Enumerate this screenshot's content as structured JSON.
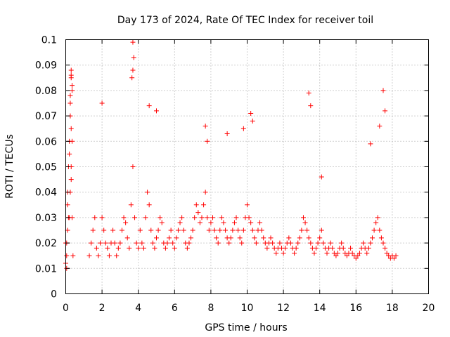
{
  "chart_data": {
    "type": "scatter",
    "title": "Day 173 of 2024, Rate Of TEC Index for receiver toil",
    "xlabel": "GPS time / hours",
    "ylabel": "ROTI / TECUs",
    "xlim": [
      0,
      20
    ],
    "ylim": [
      0,
      0.1
    ],
    "xticks": [
      "0",
      "2",
      "4",
      "6",
      "8",
      "10",
      "12",
      "14",
      "16",
      "18",
      "20"
    ],
    "yticks": [
      "0",
      "0.01",
      "0.02",
      "0.03",
      "0.04",
      "0.05",
      "0.06",
      "0.07",
      "0.08",
      "0.09",
      "0.1"
    ],
    "grid": true,
    "marker": "+",
    "color": "#ff0000",
    "series": [
      {
        "name": "ROTI",
        "description": "dense scatter of ROTI samples; dominant band 0.005-0.03 TECU/s, data gap 0.4-1.2 h, no data after ~18.2 h",
        "x": [
          0.0,
          0.05,
          0.1,
          0.15,
          0.2,
          0.25,
          0.3,
          0.35,
          0.4,
          0.05,
          0.1,
          0.2,
          0.3,
          0.35,
          0.3,
          0.25,
          0.2,
          0.1,
          0.0,
          0.05,
          0.15,
          0.25,
          0.3,
          0.35,
          1.3,
          1.4,
          1.5,
          1.6,
          1.7,
          1.8,
          1.9,
          2.0,
          2.1,
          2.2,
          2.3,
          2.4,
          2.5,
          2.6,
          2.7,
          2.8,
          2.9,
          3.0,
          3.1,
          3.2,
          3.3,
          3.4,
          3.5,
          3.6,
          3.7,
          3.8,
          3.9,
          4.0,
          4.1,
          4.2,
          4.3,
          4.4,
          4.5,
          4.6,
          4.7,
          4.8,
          4.9,
          5.0,
          5.1,
          5.2,
          5.3,
          5.4,
          5.5,
          5.6,
          5.7,
          5.8,
          5.9,
          6.0,
          6.1,
          6.2,
          6.3,
          6.4,
          6.5,
          6.6,
          6.7,
          6.8,
          6.9,
          7.0,
          7.1,
          7.2,
          7.3,
          7.4,
          7.5,
          7.6,
          7.7,
          7.8,
          7.9,
          8.0,
          8.1,
          8.2,
          8.3,
          8.4,
          8.5,
          8.6,
          8.7,
          8.8,
          8.9,
          9.0,
          9.1,
          9.2,
          9.3,
          9.4,
          9.5,
          9.6,
          9.7,
          9.8,
          9.9,
          10.0,
          10.1,
          10.2,
          10.3,
          10.4,
          10.5,
          10.6,
          10.7,
          10.8,
          10.9,
          11.0,
          11.1,
          11.2,
          11.3,
          11.4,
          11.5,
          11.6,
          11.7,
          11.8,
          11.9,
          12.0,
          12.1,
          12.2,
          12.3,
          12.4,
          12.5,
          12.6,
          12.7,
          12.8,
          12.9,
          13.0,
          13.1,
          13.2,
          13.3,
          13.4,
          13.5,
          13.6,
          13.7,
          13.8,
          13.9,
          14.0,
          14.1,
          14.2,
          14.3,
          14.4,
          14.5,
          14.6,
          14.7,
          14.8,
          14.9,
          15.0,
          15.1,
          15.2,
          15.3,
          15.4,
          15.5,
          15.6,
          15.7,
          15.8,
          15.9,
          16.0,
          16.1,
          16.2,
          16.3,
          16.4,
          16.5,
          16.6,
          16.7,
          16.8,
          16.9,
          17.0,
          17.1,
          17.2,
          17.3,
          17.4,
          17.5,
          17.6,
          17.7,
          17.8,
          17.9,
          18.0,
          18.1,
          18.2,
          0.3,
          0.35,
          0.3,
          0.25,
          3.7,
          3.75,
          3.7,
          3.65,
          4.6,
          5.0,
          7.7,
          7.8,
          10.2,
          10.3,
          13.4,
          13.5,
          14.1,
          17.5,
          17.6,
          17.3,
          16.8,
          9.8,
          8.9,
          2.0
        ],
        "y": [
          0.012,
          0.02,
          0.035,
          0.05,
          0.06,
          0.07,
          0.045,
          0.03,
          0.015,
          0.01,
          0.025,
          0.055,
          0.065,
          0.08,
          0.085,
          0.075,
          0.03,
          0.04,
          0.02,
          0.015,
          0.03,
          0.04,
          0.05,
          0.06,
          0.015,
          0.02,
          0.025,
          0.03,
          0.018,
          0.015,
          0.02,
          0.03,
          0.025,
          0.02,
          0.018,
          0.015,
          0.02,
          0.025,
          0.02,
          0.015,
          0.018,
          0.02,
          0.025,
          0.03,
          0.028,
          0.022,
          0.018,
          0.035,
          0.05,
          0.03,
          0.02,
          0.018,
          0.025,
          0.02,
          0.018,
          0.03,
          0.04,
          0.035,
          0.025,
          0.02,
          0.018,
          0.022,
          0.025,
          0.03,
          0.028,
          0.02,
          0.018,
          0.02,
          0.022,
          0.025,
          0.02,
          0.018,
          0.022,
          0.025,
          0.028,
          0.03,
          0.025,
          0.02,
          0.018,
          0.02,
          0.022,
          0.025,
          0.03,
          0.035,
          0.032,
          0.028,
          0.03,
          0.035,
          0.04,
          0.03,
          0.025,
          0.028,
          0.03,
          0.025,
          0.022,
          0.02,
          0.025,
          0.03,
          0.028,
          0.025,
          0.022,
          0.02,
          0.022,
          0.025,
          0.028,
          0.03,
          0.025,
          0.022,
          0.02,
          0.025,
          0.03,
          0.035,
          0.03,
          0.028,
          0.025,
          0.022,
          0.02,
          0.025,
          0.028,
          0.025,
          0.022,
          0.02,
          0.018,
          0.02,
          0.022,
          0.02,
          0.018,
          0.016,
          0.018,
          0.02,
          0.018,
          0.016,
          0.018,
          0.02,
          0.022,
          0.02,
          0.018,
          0.016,
          0.018,
          0.02,
          0.022,
          0.025,
          0.03,
          0.028,
          0.025,
          0.022,
          0.02,
          0.018,
          0.016,
          0.018,
          0.02,
          0.022,
          0.025,
          0.02,
          0.018,
          0.016,
          0.018,
          0.02,
          0.018,
          0.016,
          0.015,
          0.016,
          0.018,
          0.02,
          0.018,
          0.016,
          0.015,
          0.016,
          0.018,
          0.016,
          0.015,
          0.014,
          0.015,
          0.016,
          0.018,
          0.02,
          0.018,
          0.016,
          0.018,
          0.02,
          0.022,
          0.025,
          0.028,
          0.03,
          0.025,
          0.022,
          0.02,
          0.018,
          0.016,
          0.015,
          0.014,
          0.015,
          0.014,
          0.015,
          0.088,
          0.082,
          0.086,
          0.078,
          0.099,
          0.093,
          0.088,
          0.085,
          0.074,
          0.072,
          0.066,
          0.06,
          0.071,
          0.068,
          0.079,
          0.074,
          0.046,
          0.08,
          0.072,
          0.066,
          0.059,
          0.065,
          0.063,
          0.075
        ]
      }
    ]
  }
}
